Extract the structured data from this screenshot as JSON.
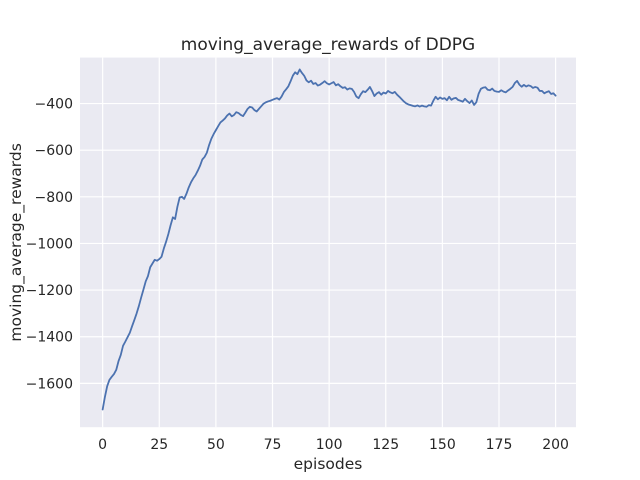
{
  "figure": {
    "title": "moving_average_rewards of DDPG",
    "xlabel": "episodes",
    "ylabel": "moving_average_rewards"
  },
  "chart_data": {
    "type": "line",
    "title": "moving_average_rewards of DDPG",
    "xlabel": "episodes",
    "ylabel": "moving_average_rewards",
    "grid": true,
    "legend": false,
    "xlim": [
      -10,
      209
    ],
    "ylim": [
      -1788,
      -203
    ],
    "xticks": [
      0,
      25,
      50,
      75,
      100,
      125,
      150,
      175,
      200
    ],
    "xtick_labels": [
      "0",
      "25",
      "50",
      "75",
      "100",
      "125",
      "150",
      "175",
      "200"
    ],
    "yticks": [
      -400,
      -600,
      -800,
      -1000,
      -1200,
      -1400,
      -1600
    ],
    "ytick_labels": [
      "−400",
      "−600",
      "−800",
      "−1000",
      "−1200",
      "−1400",
      "−1600"
    ],
    "colors": {
      "line": "#4c72b0",
      "axes_background": "#eaeaf2",
      "grid": "#ffffff",
      "text": "#262626",
      "figure_background": "#ffffff"
    },
    "series": [
      {
        "name": "moving_average_rewards",
        "color": "#4c72b0",
        "points": [
          [
            0,
            -1712
          ],
          [
            1,
            -1658
          ],
          [
            2,
            -1612
          ],
          [
            3,
            -1585
          ],
          [
            4,
            -1572
          ],
          [
            5,
            -1560
          ],
          [
            6,
            -1542
          ],
          [
            7,
            -1505
          ],
          [
            8,
            -1478
          ],
          [
            9,
            -1439
          ],
          [
            10,
            -1421
          ],
          [
            11,
            -1402
          ],
          [
            12,
            -1383
          ],
          [
            13,
            -1355
          ],
          [
            14,
            -1328
          ],
          [
            15,
            -1300
          ],
          [
            16,
            -1268
          ],
          [
            17,
            -1232
          ],
          [
            18,
            -1198
          ],
          [
            19,
            -1163
          ],
          [
            20,
            -1140
          ],
          [
            21,
            -1102
          ],
          [
            22,
            -1086
          ],
          [
            23,
            -1070
          ],
          [
            24,
            -1074
          ],
          [
            25,
            -1067
          ],
          [
            26,
            -1057
          ],
          [
            27,
            -1022
          ],
          [
            28,
            -993
          ],
          [
            29,
            -960
          ],
          [
            30,
            -922
          ],
          [
            31,
            -888
          ],
          [
            32,
            -895
          ],
          [
            33,
            -843
          ],
          [
            34,
            -803
          ],
          [
            35,
            -800
          ],
          [
            36,
            -809
          ],
          [
            37,
            -787
          ],
          [
            38,
            -760
          ],
          [
            39,
            -738
          ],
          [
            40,
            -721
          ],
          [
            41,
            -707
          ],
          [
            42,
            -688
          ],
          [
            43,
            -667
          ],
          [
            44,
            -640
          ],
          [
            45,
            -629
          ],
          [
            46,
            -611
          ],
          [
            47,
            -578
          ],
          [
            48,
            -551
          ],
          [
            49,
            -531
          ],
          [
            50,
            -514
          ],
          [
            51,
            -497
          ],
          [
            52,
            -481
          ],
          [
            53,
            -473
          ],
          [
            54,
            -464
          ],
          [
            55,
            -451
          ],
          [
            56,
            -443
          ],
          [
            57,
            -455
          ],
          [
            58,
            -449
          ],
          [
            59,
            -437
          ],
          [
            60,
            -441
          ],
          [
            61,
            -449
          ],
          [
            62,
            -454
          ],
          [
            63,
            -439
          ],
          [
            64,
            -423
          ],
          [
            65,
            -414
          ],
          [
            66,
            -417
          ],
          [
            67,
            -428
          ],
          [
            68,
            -434
          ],
          [
            69,
            -423
          ],
          [
            70,
            -412
          ],
          [
            71,
            -401
          ],
          [
            72,
            -395
          ],
          [
            73,
            -391
          ],
          [
            74,
            -388
          ],
          [
            75,
            -384
          ],
          [
            76,
            -380
          ],
          [
            77,
            -377
          ],
          [
            78,
            -383
          ],
          [
            79,
            -370
          ],
          [
            80,
            -351
          ],
          [
            81,
            -339
          ],
          [
            82,
            -326
          ],
          [
            83,
            -304
          ],
          [
            84,
            -280
          ],
          [
            85,
            -266
          ],
          [
            86,
            -274
          ],
          [
            87,
            -254
          ],
          [
            88,
            -269
          ],
          [
            89,
            -281
          ],
          [
            90,
            -301
          ],
          [
            91,
            -309
          ],
          [
            92,
            -302
          ],
          [
            93,
            -316
          ],
          [
            94,
            -312
          ],
          [
            95,
            -323
          ],
          [
            96,
            -319
          ],
          [
            97,
            -312
          ],
          [
            98,
            -304
          ],
          [
            99,
            -313
          ],
          [
            100,
            -318
          ],
          [
            101,
            -313
          ],
          [
            102,
            -308
          ],
          [
            103,
            -322
          ],
          [
            104,
            -317
          ],
          [
            105,
            -326
          ],
          [
            106,
            -333
          ],
          [
            107,
            -330
          ],
          [
            108,
            -340
          ],
          [
            109,
            -335
          ],
          [
            110,
            -337
          ],
          [
            111,
            -350
          ],
          [
            112,
            -370
          ],
          [
            113,
            -377
          ],
          [
            114,
            -360
          ],
          [
            115,
            -347
          ],
          [
            116,
            -351
          ],
          [
            117,
            -341
          ],
          [
            118,
            -329
          ],
          [
            119,
            -347
          ],
          [
            120,
            -368
          ],
          [
            121,
            -357
          ],
          [
            122,
            -351
          ],
          [
            123,
            -362
          ],
          [
            124,
            -353
          ],
          [
            125,
            -357
          ],
          [
            126,
            -346
          ],
          [
            127,
            -352
          ],
          [
            128,
            -356
          ],
          [
            129,
            -350
          ],
          [
            130,
            -362
          ],
          [
            131,
            -371
          ],
          [
            132,
            -381
          ],
          [
            133,
            -391
          ],
          [
            134,
            -399
          ],
          [
            135,
            -404
          ],
          [
            136,
            -407
          ],
          [
            137,
            -410
          ],
          [
            138,
            -412
          ],
          [
            139,
            -408
          ],
          [
            140,
            -413
          ],
          [
            141,
            -409
          ],
          [
            142,
            -412
          ],
          [
            143,
            -414
          ],
          [
            144,
            -407
          ],
          [
            145,
            -409
          ],
          [
            146,
            -388
          ],
          [
            147,
            -371
          ],
          [
            148,
            -382
          ],
          [
            149,
            -374
          ],
          [
            150,
            -380
          ],
          [
            151,
            -377
          ],
          [
            152,
            -386
          ],
          [
            153,
            -371
          ],
          [
            154,
            -384
          ],
          [
            155,
            -378
          ],
          [
            156,
            -376
          ],
          [
            157,
            -385
          ],
          [
            158,
            -388
          ],
          [
            159,
            -392
          ],
          [
            160,
            -380
          ],
          [
            161,
            -390
          ],
          [
            162,
            -398
          ],
          [
            163,
            -387
          ],
          [
            164,
            -406
          ],
          [
            165,
            -394
          ],
          [
            166,
            -358
          ],
          [
            167,
            -337
          ],
          [
            168,
            -332
          ],
          [
            169,
            -330
          ],
          [
            170,
            -341
          ],
          [
            171,
            -343
          ],
          [
            172,
            -336
          ],
          [
            173,
            -346
          ],
          [
            174,
            -349
          ],
          [
            175,
            -350
          ],
          [
            176,
            -343
          ],
          [
            177,
            -349
          ],
          [
            178,
            -352
          ],
          [
            179,
            -344
          ],
          [
            180,
            -337
          ],
          [
            181,
            -329
          ],
          [
            182,
            -312
          ],
          [
            183,
            -303
          ],
          [
            184,
            -319
          ],
          [
            185,
            -328
          ],
          [
            186,
            -320
          ],
          [
            187,
            -327
          ],
          [
            188,
            -322
          ],
          [
            189,
            -325
          ],
          [
            190,
            -333
          ],
          [
            191,
            -329
          ],
          [
            192,
            -332
          ],
          [
            193,
            -346
          ],
          [
            194,
            -346
          ],
          [
            195,
            -356
          ],
          [
            196,
            -351
          ],
          [
            197,
            -347
          ],
          [
            198,
            -359
          ],
          [
            199,
            -356
          ],
          [
            200,
            -366
          ]
        ]
      }
    ]
  }
}
